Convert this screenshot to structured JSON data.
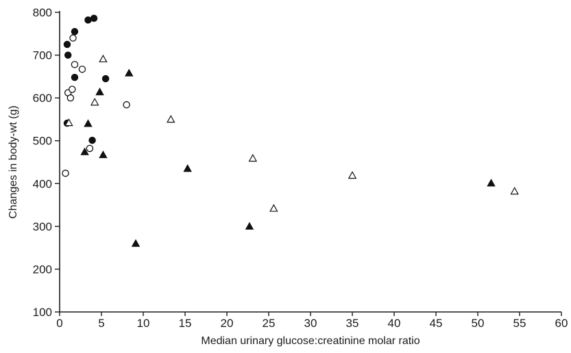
{
  "chart_data": {
    "type": "scatter",
    "title": "",
    "xlabel": "Median urinary glucose:creatinine molar ratio",
    "ylabel": "Changes in body-wt (g)",
    "xlim": [
      0,
      60
    ],
    "ylim": [
      100,
      800
    ],
    "x_ticks": [
      0,
      5,
      10,
      15,
      20,
      25,
      30,
      35,
      40,
      45,
      50,
      55,
      60
    ],
    "y_ticks": [
      100,
      200,
      300,
      400,
      500,
      600,
      700,
      800
    ],
    "grid": false,
    "legend": "none",
    "series": [
      {
        "marker": "filled-circle",
        "color": "#111111",
        "points": [
          {
            "x": 0.9,
            "y": 725
          },
          {
            "x": 1.0,
            "y": 700
          },
          {
            "x": 1.8,
            "y": 755
          },
          {
            "x": 3.4,
            "y": 782
          },
          {
            "x": 4.1,
            "y": 786
          },
          {
            "x": 1.8,
            "y": 648
          },
          {
            "x": 5.5,
            "y": 645
          },
          {
            "x": 0.9,
            "y": 541
          },
          {
            "x": 3.9,
            "y": 501
          }
        ]
      },
      {
        "marker": "open-circle",
        "color": "#111111",
        "points": [
          {
            "x": 1.6,
            "y": 740
          },
          {
            "x": 1.8,
            "y": 678
          },
          {
            "x": 2.7,
            "y": 667
          },
          {
            "x": 1.0,
            "y": 612
          },
          {
            "x": 1.5,
            "y": 620
          },
          {
            "x": 1.3,
            "y": 600
          },
          {
            "x": 8.0,
            "y": 584
          },
          {
            "x": 3.6,
            "y": 482
          },
          {
            "x": 0.7,
            "y": 424
          }
        ]
      },
      {
        "marker": "filled-triangle",
        "color": "#111111",
        "points": [
          {
            "x": 8.3,
            "y": 657
          },
          {
            "x": 4.8,
            "y": 613
          },
          {
            "x": 3.4,
            "y": 539
          },
          {
            "x": 3.0,
            "y": 473
          },
          {
            "x": 5.2,
            "y": 466
          },
          {
            "x": 9.1,
            "y": 259
          },
          {
            "x": 15.3,
            "y": 434
          },
          {
            "x": 22.7,
            "y": 299
          },
          {
            "x": 51.6,
            "y": 400
          }
        ]
      },
      {
        "marker": "open-triangle",
        "color": "#111111",
        "points": [
          {
            "x": 5.2,
            "y": 690
          },
          {
            "x": 4.2,
            "y": 589
          },
          {
            "x": 1.1,
            "y": 541
          },
          {
            "x": 13.3,
            "y": 549
          },
          {
            "x": 23.1,
            "y": 458
          },
          {
            "x": 25.6,
            "y": 341
          },
          {
            "x": 35.0,
            "y": 418
          },
          {
            "x": 54.4,
            "y": 381
          }
        ]
      }
    ]
  }
}
